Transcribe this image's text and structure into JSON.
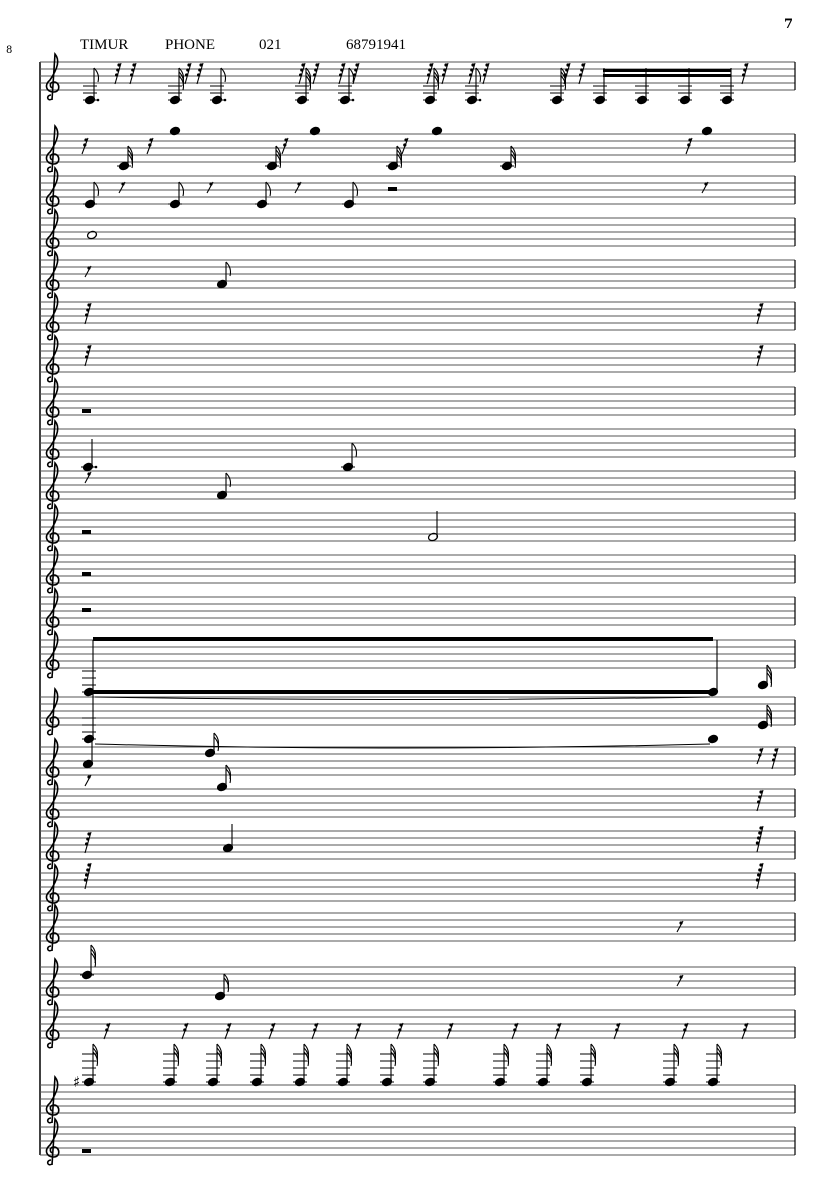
{
  "page": {
    "page_number": "7",
    "measure_number": "8"
  },
  "header": {
    "name": "TIMUR",
    "label": "PHONE",
    "area_code": "021",
    "number": "68791941"
  },
  "score": {
    "clef": "treble-clef",
    "key_accidental": "sharp",
    "ink_color": "#000000",
    "staff_line_color": "#555555"
  }
}
